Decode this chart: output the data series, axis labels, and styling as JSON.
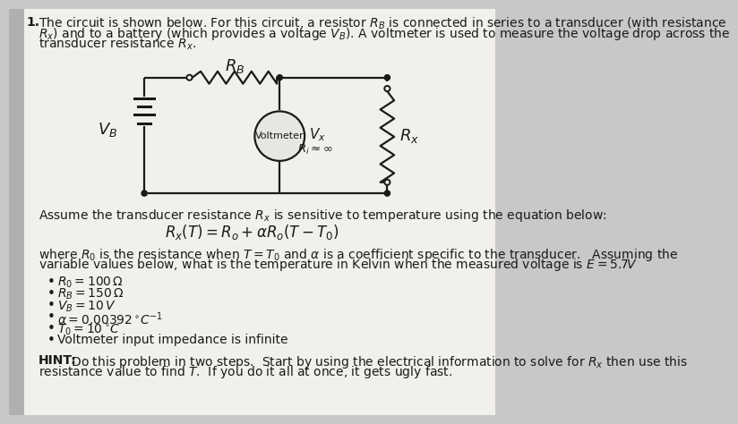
{
  "bg_color": "#c8c8c8",
  "paper_color": "#f2f0ec",
  "text_color": "#1a1a1a",
  "circuit_color": "#1a1a1a",
  "intro_line1": "The circuit is shown below. For this circuit, a resistor $R_B$ is connected in series to a transducer (with resistance",
  "intro_line2": "$R_x$) and to a battery (which provides a voltage $V_B$). A voltmeter is used to measure the voltage drop across the",
  "intro_line3": "transducer resistance $R_x$.",
  "assume_text": "Assume the transducer resistance $R_x$ is sensitive to temperature using the equation below:",
  "equation": "$R_x(T) = R_o + \\alpha R_o(T - T_0)$",
  "where_line1": "where $R_0$ is the resistance when $T = T_0$ and $\\alpha$ is a coefficient specific to the transducer.   Assuming the",
  "where_line2": "variable values below, what is the temperature in Kelvin when the measured voltage is $E = 5.7V$",
  "bullets": [
    "$R_0 = 100\\,\\Omega$",
    "$R_B = 150\\,\\Omega$",
    "$V_B = 10\\,V$",
    "$\\alpha = 0.00392\\,^{\\circ}C^{-1}$",
    "$T_0 = 10\\,^{\\circ}C$",
    "Voltmeter input impedance is infinite"
  ],
  "hint_text1": " Do this problem in two steps.  Start by using the electrical information to solve for $R_x$ then use this",
  "hint_text2": "resistance value to find $T$.  If you do it all at once, it gets ugly fast.",
  "fs_body": 10.0,
  "fs_eq": 12.0
}
